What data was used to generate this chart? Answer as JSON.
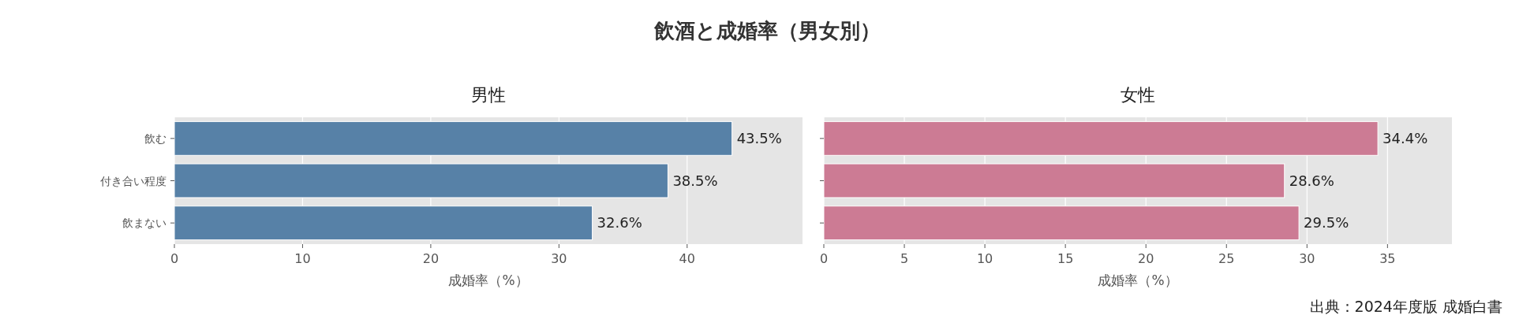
{
  "chart_data": [
    {
      "type": "bar",
      "orientation": "horizontal",
      "title": "飲酒と成婚率（男女別）",
      "subtitle": "男性",
      "xlabel": "成婚率（%）",
      "categories": [
        "飲む",
        "付き合い程度",
        "飲まない"
      ],
      "values": [
        43.5,
        38.5,
        32.6
      ],
      "value_labels": [
        "43.5%",
        "38.5%",
        "32.6%"
      ],
      "color": "#5781a7",
      "xlim": [
        0,
        49
      ],
      "xticks": [
        0,
        10,
        20,
        30,
        40
      ],
      "grid": "x"
    },
    {
      "type": "bar",
      "orientation": "horizontal",
      "subtitle": "女性",
      "xlabel": "成婚率（%）",
      "categories": [
        null,
        null,
        null
      ],
      "values": [
        34.4,
        28.6,
        29.5
      ],
      "value_labels": [
        "34.4%",
        "28.6%",
        "29.5%"
      ],
      "color": "#cc7b94",
      "xlim": [
        0,
        39
      ],
      "xticks": [
        0,
        5,
        10,
        15,
        20,
        25,
        30,
        35
      ],
      "grid": "x",
      "tick_labels": "x",
      "annotations": [
        "出典：2024年度版 成婚白書"
      ]
    }
  ]
}
